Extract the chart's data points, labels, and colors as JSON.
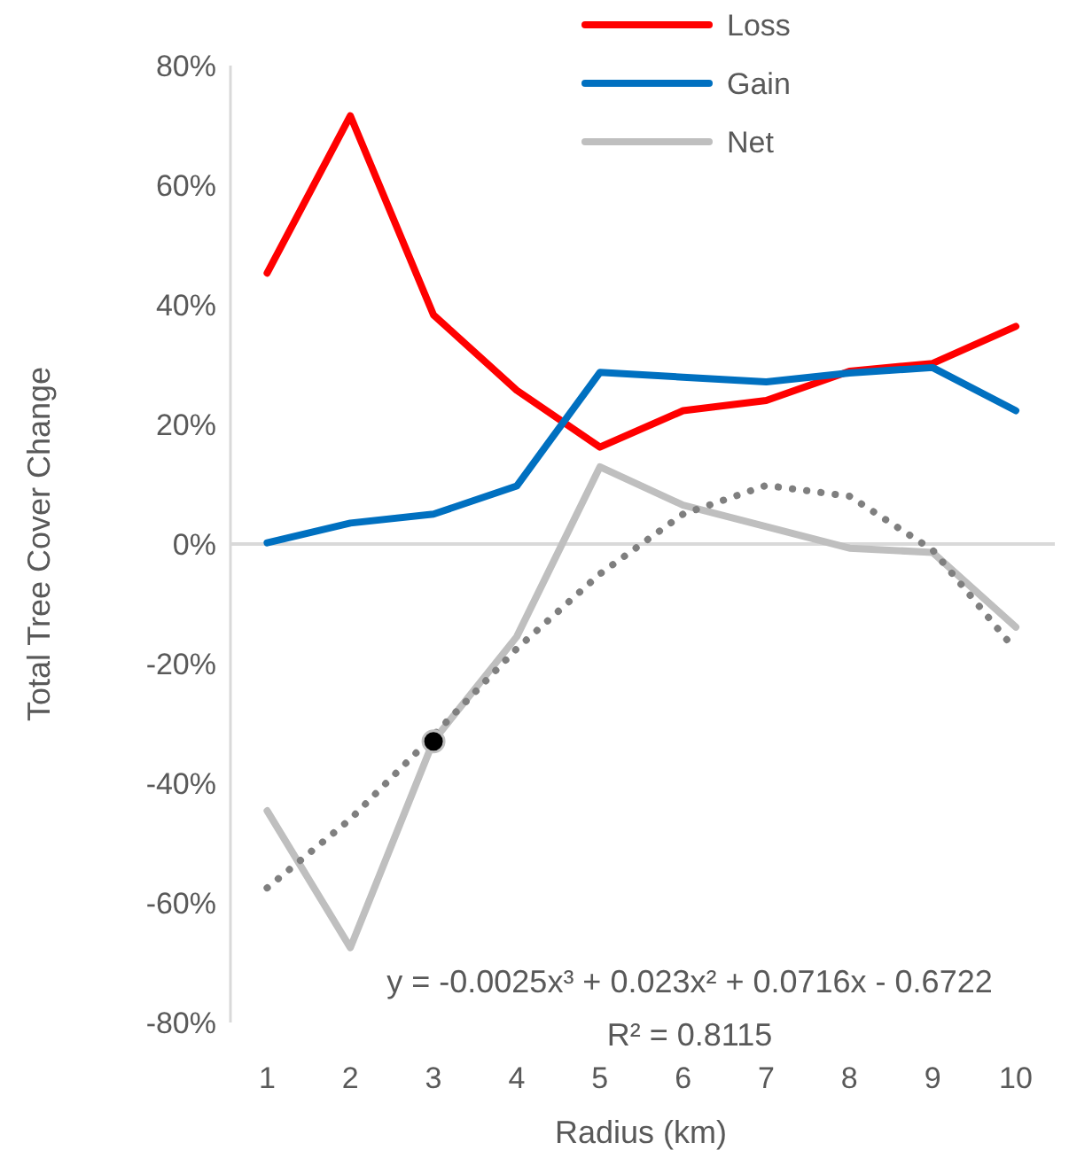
{
  "chart_data": {
    "type": "line",
    "xlabel": "Radius (km)",
    "ylabel": "Total Tree Cover Change",
    "categories": [
      "1",
      "2",
      "3",
      "4",
      "5",
      "6",
      "7",
      "8",
      "9",
      "10"
    ],
    "series": [
      {
        "name": "Loss",
        "color": "#ff0000",
        "values": [
          45.3,
          71.6,
          38.3,
          25.7,
          16.2,
          22.3,
          24.0,
          28.9,
          30.2,
          36.4
        ]
      },
      {
        "name": "Gain",
        "color": "#0070c0",
        "values": [
          0.2,
          3.5,
          5.0,
          9.7,
          28.7,
          27.9,
          27.1,
          28.6,
          29.5,
          22.3
        ]
      },
      {
        "name": "Net",
        "color": "#bfbfbf",
        "values": [
          -44.6,
          -67.5,
          -32.9,
          -15.5,
          12.9,
          6.5,
          2.9,
          -0.7,
          -1.4,
          -13.9
        ]
      },
      {
        "type": "line",
        "color": "#7f7f7f",
        "line_style": "dotted",
        "values": [
          -57.5,
          -46,
          -32,
          -17.5,
          -5,
          5,
          9.8,
          8,
          -1,
          -17.8
        ]
      },
      {
        "type": "scatter",
        "color": "#000000",
        "marker": "circle",
        "x": [
          "3"
        ],
        "values": [
          -33
        ]
      }
    ],
    "ylim": [
      -80,
      80
    ],
    "yticks": [
      {
        "value": -80,
        "label": "-80%"
      },
      {
        "value": -60,
        "label": "-60%"
      },
      {
        "value": -40,
        "label": "-40%"
      },
      {
        "value": -20,
        "label": "-20%"
      },
      {
        "value": 0,
        "label": "0%"
      },
      {
        "value": 20,
        "label": "20%"
      },
      {
        "value": 40,
        "label": "40%"
      },
      {
        "value": 60,
        "label": "60%"
      },
      {
        "value": 80,
        "label": "80%"
      }
    ],
    "legend": "top right",
    "annotations": [
      "y = -0.0025x³ + 0.023x² + 0.0716x - 0.6722",
      "R² = 0.8115"
    ]
  }
}
